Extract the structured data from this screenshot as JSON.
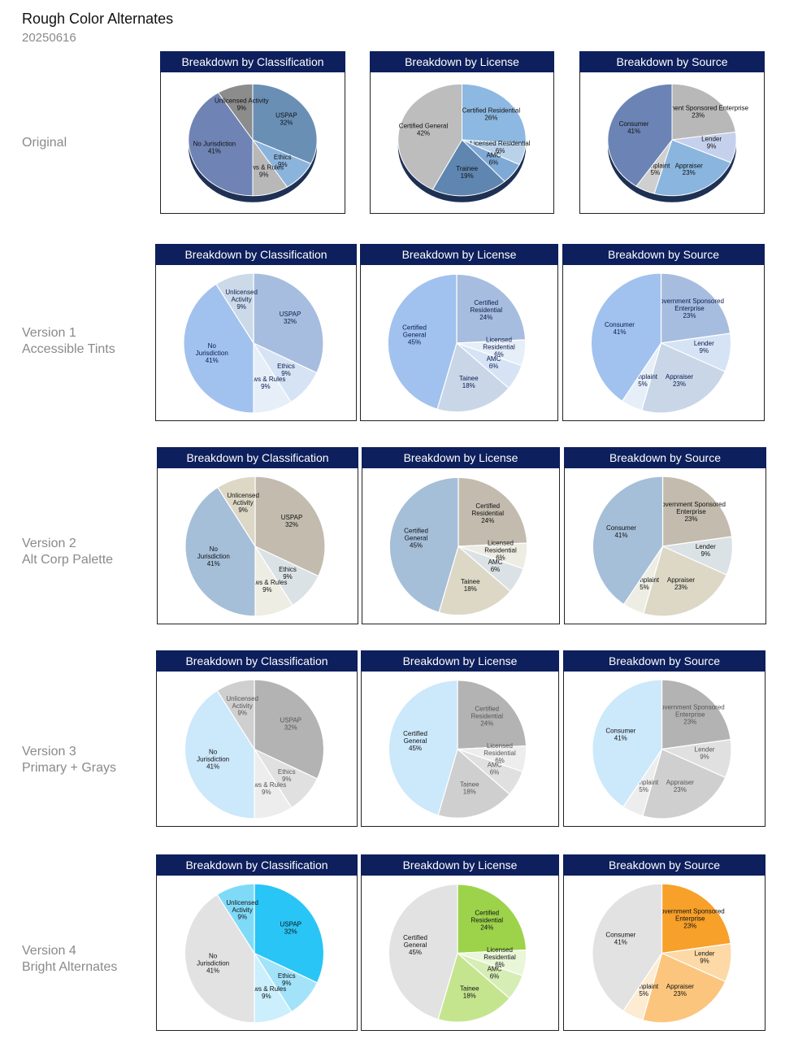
{
  "page": {
    "title": "Rough Color Alternates",
    "date": "20250616"
  },
  "chart_data": [
    {
      "row": "Original",
      "label_lines": [
        "Original"
      ],
      "style": "3d",
      "charts": [
        {
          "type": "pie",
          "title": "Breakdown by Classification",
          "slices": [
            {
              "label": "USPAP",
              "value": 32,
              "color": "#6a8fb5",
              "text_color": "#111111"
            },
            {
              "label": "Ethics",
              "value": 9,
              "color": "#8bb4dd",
              "text_color": "#111111"
            },
            {
              "label": "Laws & Rules",
              "value": 9,
              "color": "#b8b8b8",
              "text_color": "#111111"
            },
            {
              "label": "No Jurisdiction",
              "value": 41,
              "color": "#6f84b4",
              "text_color": "#111111"
            },
            {
              "label": "Unlicensed Activity",
              "value": 9,
              "color": "#8c8c8c",
              "text_color": "#111111"
            }
          ]
        },
        {
          "type": "pie",
          "title": "Breakdown by License",
          "slices": [
            {
              "label": "Certified Residential",
              "value": 26,
              "color": "#8db8e2",
              "text_color": "#111111"
            },
            {
              "label": "Licensed Residential",
              "value": 6,
              "color": "#b9d2ea",
              "text_color": "#111111"
            },
            {
              "label": "AMC",
              "value": 6,
              "color": "#7fa9d6",
              "text_color": "#111111"
            },
            {
              "label": "Trainee",
              "value": 19,
              "color": "#5f86b0",
              "text_color": "#111111"
            },
            {
              "label": "Certified General",
              "value": 42,
              "color": "#bdbdbd",
              "text_color": "#111111"
            }
          ]
        },
        {
          "type": "pie",
          "title": "Breakdown by Source",
          "slices": [
            {
              "label": "Government Sponsored Enterprise",
              "value": 23,
              "color": "#b8b8b8",
              "text_color": "#111111"
            },
            {
              "label": "Lender",
              "value": 9,
              "color": "#c5d1ec",
              "text_color": "#111111"
            },
            {
              "label": "Appraiser",
              "value": 23,
              "color": "#89b5df",
              "text_color": "#111111"
            },
            {
              "label": "Complaint",
              "value": 5,
              "color": "#cfcfcf",
              "text_color": "#111111"
            },
            {
              "label": "Consumer",
              "value": 41,
              "color": "#6c84b5",
              "text_color": "#111111"
            }
          ]
        }
      ]
    },
    {
      "row": "Version 1",
      "label_lines": [
        "Version 1",
        "Accessible Tints"
      ],
      "style": "flat",
      "charts": [
        {
          "type": "pie",
          "title": "Breakdown by Classification",
          "slices": [
            {
              "label": "USPAP",
              "value": 32,
              "color": "#a6bddf",
              "text_color": "#0b1b4a"
            },
            {
              "label": "Ethics",
              "value": 9,
              "color": "#d5e3f5",
              "text_color": "#0b1b4a"
            },
            {
              "label": "Laws & Rules",
              "value": 9,
              "color": "#e6eef8",
              "text_color": "#0b1b4a"
            },
            {
              "label": "No Jurisdiction",
              "value": 41,
              "color": "#a1c2ee",
              "text_color": "#0b1b4a"
            },
            {
              "label": "Unlicensed Activity",
              "value": 9,
              "color": "#cbd9e8",
              "text_color": "#0b1b4a"
            }
          ]
        },
        {
          "type": "pie",
          "title": "Breakdown by License",
          "slices": [
            {
              "label": "Certified Residential",
              "value": 24,
              "color": "#a6bddf",
              "text_color": "#0b1b4a"
            },
            {
              "label": "Licensed Residential",
              "value": 6,
              "color": "#e6eef8",
              "text_color": "#0b1b4a"
            },
            {
              "label": "AMC",
              "value": 6,
              "color": "#d5e3f5",
              "text_color": "#0b1b4a"
            },
            {
              "label": "Tainee",
              "value": 18,
              "color": "#c8d6e8",
              "text_color": "#0b1b4a"
            },
            {
              "label": "Certified General",
              "value": 45,
              "color": "#a1c2ee",
              "text_color": "#0b1b4a"
            }
          ]
        },
        {
          "type": "pie",
          "title": "Breakdown by Source",
          "slices": [
            {
              "label": "Government Sponsored Enterprise",
              "value": 23,
              "color": "#a6bddf",
              "text_color": "#0b1b4a"
            },
            {
              "label": "Lender",
              "value": 9,
              "color": "#d5e3f5",
              "text_color": "#0b1b4a"
            },
            {
              "label": "Appraiser",
              "value": 23,
              "color": "#c8d6e8",
              "text_color": "#0b1b4a"
            },
            {
              "label": "Complaint",
              "value": 5,
              "color": "#e6eef8",
              "text_color": "#0b1b4a"
            },
            {
              "label": "Consumer",
              "value": 41,
              "color": "#a1c2ee",
              "text_color": "#0b1b4a"
            }
          ]
        }
      ]
    },
    {
      "row": "Version 2",
      "label_lines": [
        "Version 2",
        "Alt Corp Palette"
      ],
      "style": "flat",
      "charts": [
        {
          "type": "pie",
          "title": "Breakdown by Classification",
          "slices": [
            {
              "label": "USPAP",
              "value": 32,
              "color": "#c2bbae",
              "text_color": "#111111"
            },
            {
              "label": "Ethics",
              "value": 9,
              "color": "#dbe2e6",
              "text_color": "#111111"
            },
            {
              "label": "Laws & Rules",
              "value": 9,
              "color": "#edede4",
              "text_color": "#111111"
            },
            {
              "label": "No Jurisdiction",
              "value": 41,
              "color": "#a5bfd9",
              "text_color": "#111111"
            },
            {
              "label": "Unlicensed Activity",
              "value": 9,
              "color": "#ddd8c6",
              "text_color": "#111111"
            }
          ]
        },
        {
          "type": "pie",
          "title": "Breakdown by License",
          "slices": [
            {
              "label": "Certified Residential",
              "value": 24,
              "color": "#c2bbae",
              "text_color": "#111111"
            },
            {
              "label": "Licensed Residential",
              "value": 6,
              "color": "#edede4",
              "text_color": "#111111"
            },
            {
              "label": "AMC",
              "value": 6,
              "color": "#dbe2e6",
              "text_color": "#111111"
            },
            {
              "label": "Tainee",
              "value": 18,
              "color": "#ddd8c6",
              "text_color": "#111111"
            },
            {
              "label": "Certified General",
              "value": 45,
              "color": "#a5bfd9",
              "text_color": "#111111"
            }
          ]
        },
        {
          "type": "pie",
          "title": "Breakdown by Source",
          "slices": [
            {
              "label": "Government Sponsored Enterprise",
              "value": 23,
              "color": "#c2bbae",
              "text_color": "#111111"
            },
            {
              "label": "Lender",
              "value": 9,
              "color": "#dbe2e6",
              "text_color": "#111111"
            },
            {
              "label": "Appraiser",
              "value": 23,
              "color": "#ddd8c6",
              "text_color": "#111111"
            },
            {
              "label": "Complaint",
              "value": 5,
              "color": "#edede4",
              "text_color": "#111111"
            },
            {
              "label": "Consumer",
              "value": 41,
              "color": "#a5bfd9",
              "text_color": "#111111"
            }
          ]
        }
      ]
    },
    {
      "row": "Version 3",
      "label_lines": [
        "Version 3",
        "Primary + Grays"
      ],
      "style": "flat",
      "charts": [
        {
          "type": "pie",
          "title": "Breakdown by Classification",
          "slices": [
            {
              "label": "USPAP",
              "value": 32,
              "color": "#b3b3b3",
              "text_color": "#555555"
            },
            {
              "label": "Ethics",
              "value": 9,
              "color": "#e0e0e0",
              "text_color": "#555555"
            },
            {
              "label": "Laws & Rules",
              "value": 9,
              "color": "#ededed",
              "text_color": "#555555"
            },
            {
              "label": "No Jurisdiction",
              "value": 41,
              "color": "#cce8fb",
              "text_color": "#111111"
            },
            {
              "label": "Unlicensed Activity",
              "value": 9,
              "color": "#cfcfcf",
              "text_color": "#555555"
            }
          ]
        },
        {
          "type": "pie",
          "title": "Breakdown by License",
          "slices": [
            {
              "label": "Certified Residential",
              "value": 24,
              "color": "#b3b3b3",
              "text_color": "#555555"
            },
            {
              "label": "Licensed Residential",
              "value": 6,
              "color": "#ededed",
              "text_color": "#555555"
            },
            {
              "label": "AMC",
              "value": 6,
              "color": "#e0e0e0",
              "text_color": "#555555"
            },
            {
              "label": "Tainee",
              "value": 18,
              "color": "#cfcfcf",
              "text_color": "#555555"
            },
            {
              "label": "Certified General",
              "value": 45,
              "color": "#cce8fb",
              "text_color": "#111111"
            }
          ]
        },
        {
          "type": "pie",
          "title": "Breakdown by Source",
          "slices": [
            {
              "label": "Government Sponsored Enterprise",
              "value": 23,
              "color": "#b3b3b3",
              "text_color": "#555555"
            },
            {
              "label": "Lender",
              "value": 9,
              "color": "#e0e0e0",
              "text_color": "#555555"
            },
            {
              "label": "Appraiser",
              "value": 23,
              "color": "#cfcfcf",
              "text_color": "#555555"
            },
            {
              "label": "Complaint",
              "value": 5,
              "color": "#ededed",
              "text_color": "#555555"
            },
            {
              "label": "Consumer",
              "value": 41,
              "color": "#cce8fb",
              "text_color": "#111111"
            }
          ]
        }
      ]
    },
    {
      "row": "Version 4",
      "label_lines": [
        "Version 4",
        "Bright Alternates"
      ],
      "style": "flat",
      "charts": [
        {
          "type": "pie",
          "title": "Breakdown by Classification",
          "slices": [
            {
              "label": "USPAP",
              "value": 32,
              "color": "#29c5f6",
              "text_color": "#111111"
            },
            {
              "label": "Ethics",
              "value": 9,
              "color": "#a2e3fa",
              "text_color": "#111111"
            },
            {
              "label": "Laws & Rules",
              "value": 9,
              "color": "#cbeffc",
              "text_color": "#111111"
            },
            {
              "label": "No Jurisdiction",
              "value": 41,
              "color": "#e2e2e2",
              "text_color": "#111111"
            },
            {
              "label": "Unlicensed Activity",
              "value": 9,
              "color": "#7fdaf8",
              "text_color": "#111111"
            }
          ]
        },
        {
          "type": "pie",
          "title": "Breakdown by License",
          "slices": [
            {
              "label": "Certified Residential",
              "value": 24,
              "color": "#9dd34a",
              "text_color": "#111111"
            },
            {
              "label": "Licensed Residential",
              "value": 6,
              "color": "#e9f6d7",
              "text_color": "#111111"
            },
            {
              "label": "AMC",
              "value": 6,
              "color": "#d6edb5",
              "text_color": "#111111"
            },
            {
              "label": "Tainee",
              "value": 18,
              "color": "#c4e58e",
              "text_color": "#111111"
            },
            {
              "label": "Certified General",
              "value": 45,
              "color": "#e2e2e2",
              "text_color": "#111111"
            }
          ]
        },
        {
          "type": "pie",
          "title": "Breakdown by Source",
          "slices": [
            {
              "label": "Government Sponsored Enterprise",
              "value": 23,
              "color": "#f7a02a",
              "text_color": "#111111"
            },
            {
              "label": "Lender",
              "value": 9,
              "color": "#fcd9a6",
              "text_color": "#111111"
            },
            {
              "label": "Appraiser",
              "value": 23,
              "color": "#fbc57d",
              "text_color": "#111111"
            },
            {
              "label": "Complaint",
              "value": 5,
              "color": "#fdebd2",
              "text_color": "#111111"
            },
            {
              "label": "Consumer",
              "value": 41,
              "color": "#e2e2e2",
              "text_color": "#111111"
            }
          ]
        }
      ]
    }
  ]
}
